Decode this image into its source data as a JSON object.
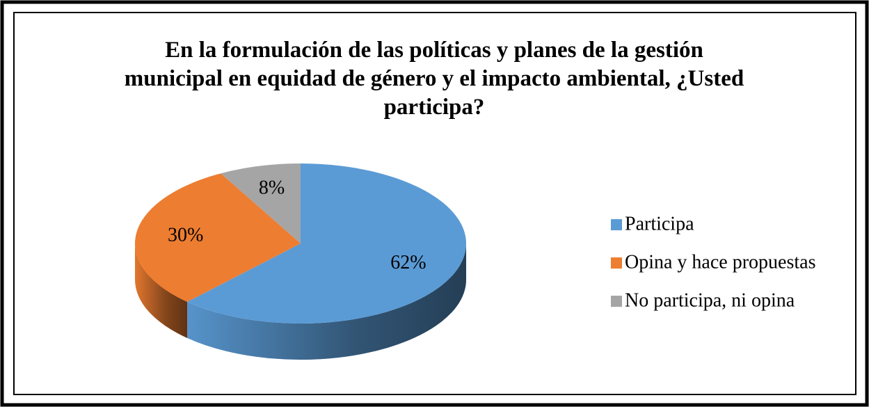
{
  "chart_data": {
    "type": "pie",
    "title": "En la formulación de las políticas y planes de la gestión municipal en equidad de género y el impacto ambiental, ¿Usted participa?",
    "categories": [
      "Participa",
      "Opina y hace propuestas",
      "No participa, ni opina"
    ],
    "values": [
      62,
      30,
      8
    ],
    "value_labels": [
      "62%",
      "30%",
      "8%"
    ],
    "colors": [
      "#5b9bd5",
      "#ed7d31",
      "#a5a5a5"
    ],
    "legend": "right"
  }
}
